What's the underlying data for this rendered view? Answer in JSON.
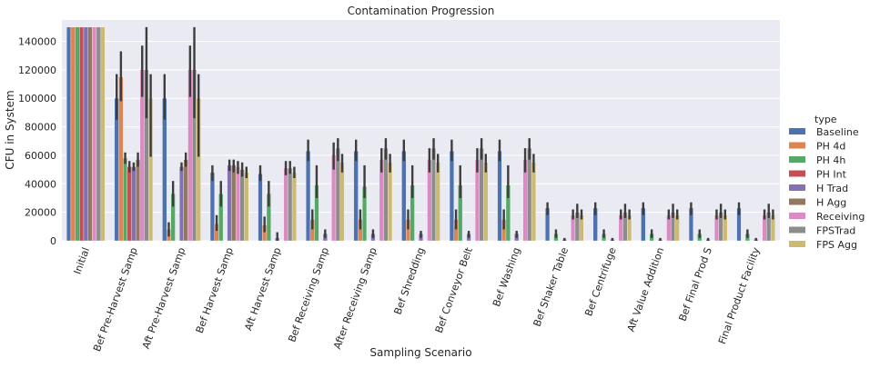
{
  "chart_data": {
    "type": "bar",
    "title": "Contamination Progression",
    "xlabel": "Sampling Scenario",
    "ylabel": "CFU in System",
    "ylim": [
      0,
      155000
    ],
    "yticks": [
      0,
      20000,
      40000,
      60000,
      80000,
      100000,
      120000,
      140000
    ],
    "ytick_labels": [
      "0",
      "20000",
      "40000",
      "60000",
      "80000",
      "100000",
      "120000",
      "140000"
    ],
    "grid": true,
    "legend_title": "type",
    "legend_position": "right",
    "categories": [
      "Initial",
      "Bef Pre-Harvest Samp",
      "Aft Pre-Harvest Samp",
      "Bef Harvest Samp",
      "Aft Harvest Samp",
      "Bef Receiving Samp",
      "After Receiving Samp",
      "Bef Shredding",
      "Bef Conveyor Belt",
      "Bef Washing",
      "Bef Shaker Table",
      "Bef Centrifuge",
      "Aft Value Addition",
      "Bef Final Prod S",
      "Final Product Facility"
    ],
    "series": [
      {
        "name": "Baseline",
        "color": "#4c72b0",
        "values": [
          150000,
          100000,
          100000,
          48000,
          47000,
          63000,
          63000,
          63000,
          63000,
          63000,
          23000,
          23000,
          23000,
          23000,
          23000
        ],
        "err_low": [
          150000,
          85000,
          85000,
          42000,
          42000,
          56000,
          56000,
          56000,
          56000,
          56000,
          18000,
          18000,
          18000,
          18000,
          18000
        ],
        "err_high": [
          150000,
          117000,
          117000,
          53000,
          53000,
          71000,
          71000,
          71000,
          71000,
          71000,
          27000,
          27000,
          27000,
          27000,
          27000
        ]
      },
      {
        "name": "PH 4d",
        "color": "#dd8452",
        "values": [
          150000,
          115000,
          8000,
          12000,
          11000,
          15000,
          15000,
          15000,
          15000,
          15000,
          0,
          0,
          0,
          0,
          0
        ],
        "err_low": [
          150000,
          98000,
          3000,
          7000,
          6000,
          8000,
          8000,
          8000,
          8000,
          8000,
          0,
          0,
          0,
          0,
          0
        ],
        "err_high": [
          150000,
          133000,
          13000,
          18000,
          17000,
          22000,
          22000,
          22000,
          22000,
          22000,
          0,
          0,
          0,
          0,
          0
        ]
      },
      {
        "name": "PH 4h",
        "color": "#55a868",
        "values": [
          150000,
          58000,
          33000,
          33000,
          33000,
          39000,
          38000,
          39000,
          39000,
          39000,
          5000,
          5000,
          5000,
          5000,
          5000
        ],
        "err_low": [
          150000,
          54000,
          24000,
          24000,
          24000,
          30000,
          30000,
          30000,
          30000,
          30000,
          2000,
          2000,
          2000,
          2000,
          2000
        ],
        "err_high": [
          150000,
          62000,
          42000,
          42000,
          42000,
          53000,
          53000,
          53000,
          53000,
          53000,
          8000,
          8000,
          8000,
          8000,
          8000
        ]
      },
      {
        "name": "PH Int",
        "color": "#c44e52",
        "values": [
          150000,
          52000,
          0,
          0,
          0,
          0,
          0,
          0,
          0,
          0,
          0,
          0,
          0,
          0,
          0
        ],
        "err_low": [
          150000,
          48000,
          0,
          0,
          0,
          0,
          0,
          0,
          0,
          0,
          0,
          0,
          0,
          0,
          0
        ],
        "err_high": [
          150000,
          56000,
          0,
          0,
          0,
          0,
          0,
          0,
          0,
          0,
          0,
          0,
          0,
          0,
          0
        ]
      },
      {
        "name": "H Trad",
        "color": "#8172b3",
        "values": [
          150000,
          52000,
          52000,
          53000,
          2000,
          5000,
          5000,
          5000,
          5000,
          5000,
          1000,
          1000,
          1000,
          1000,
          1000
        ],
        "err_low": [
          150000,
          49000,
          49000,
          49000,
          0,
          2000,
          2000,
          2000,
          2000,
          2000,
          0,
          0,
          0,
          0,
          0
        ],
        "err_high": [
          150000,
          55000,
          55000,
          57000,
          6000,
          8000,
          8000,
          7000,
          7000,
          7000,
          2000,
          2000,
          2000,
          2000,
          2000
        ]
      },
      {
        "name": "H Agg",
        "color": "#937860",
        "values": [
          150000,
          57000,
          57000,
          53000,
          0,
          0,
          0,
          0,
          0,
          0,
          0,
          0,
          0,
          0,
          0
        ],
        "err_low": [
          150000,
          52000,
          52000,
          48000,
          0,
          0,
          0,
          0,
          0,
          0,
          0,
          0,
          0,
          0,
          0
        ],
        "err_high": [
          150000,
          62000,
          62000,
          57000,
          0,
          0,
          0,
          0,
          0,
          0,
          0,
          0,
          0,
          0,
          0
        ]
      },
      {
        "name": "Receiving",
        "color": "#da8bc3",
        "values": [
          150000,
          120000,
          120000,
          52000,
          51000,
          60000,
          57000,
          57000,
          57000,
          57000,
          18000,
          18000,
          18000,
          18000,
          18000
        ],
        "err_low": [
          150000,
          101000,
          101000,
          47000,
          46000,
          50000,
          48000,
          48000,
          48000,
          48000,
          15000,
          15000,
          15000,
          15000,
          15000
        ],
        "err_high": [
          150000,
          137000,
          137000,
          56000,
          56000,
          69000,
          65000,
          65000,
          65000,
          65000,
          22000,
          22000,
          22000,
          22000,
          22000
        ]
      },
      {
        "name": "FPSTrad",
        "color": "#8c8c8c",
        "values": [
          150000,
          120000,
          120000,
          50000,
          51000,
          65000,
          65000,
          65000,
          65000,
          65000,
          20000,
          20000,
          20000,
          20000,
          20000
        ],
        "err_low": [
          150000,
          86000,
          86000,
          45000,
          47000,
          56000,
          57000,
          57000,
          57000,
          57000,
          16000,
          16000,
          16000,
          16000,
          16000
        ],
        "err_high": [
          150000,
          150000,
          150000,
          55000,
          56000,
          72000,
          72000,
          72000,
          72000,
          72000,
          26000,
          26000,
          26000,
          26000,
          26000
        ]
      },
      {
        "name": "FPS Agg",
        "color": "#ccb974",
        "values": [
          150000,
          100000,
          100000,
          48000,
          48000,
          55000,
          55000,
          55000,
          55000,
          55000,
          18000,
          18000,
          18000,
          18000,
          18000
        ],
        "err_low": [
          150000,
          59000,
          59000,
          44000,
          44000,
          48000,
          48000,
          48000,
          48000,
          48000,
          15000,
          15000,
          15000,
          15000,
          15000
        ],
        "err_high": [
          150000,
          117000,
          117000,
          52000,
          52000,
          61000,
          61000,
          61000,
          61000,
          61000,
          22000,
          22000,
          22000,
          22000,
          22000
        ]
      }
    ]
  }
}
